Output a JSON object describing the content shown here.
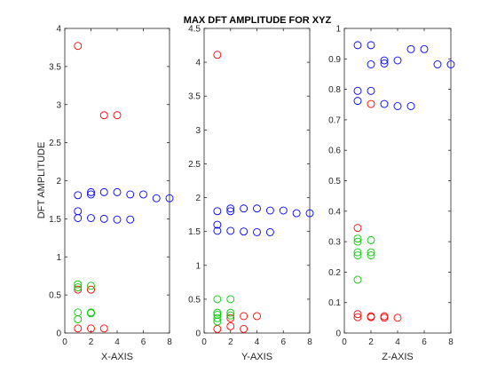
{
  "figure": {
    "title": "MAX DFT AMPLITUDE FOR XYZ",
    "ylabel": "DFT AMPLITUDE"
  },
  "colors": {
    "red": "#ff0000",
    "green": "#00cc00",
    "blue": "#0000ff",
    "axis": "#262626"
  },
  "chart_data": [
    {
      "type": "scatter",
      "xlabel": "X-AXIS",
      "xlim": [
        0,
        8
      ],
      "ylim": [
        0,
        4
      ],
      "xticks": [
        0,
        2,
        4,
        6,
        8
      ],
      "yticks": [
        0,
        0.5,
        1,
        1.5,
        2,
        2.5,
        3,
        3.5,
        4
      ],
      "series": [
        {
          "color": "red",
          "points": [
            [
              1,
              3.77
            ],
            [
              3,
              2.86
            ],
            [
              4,
              2.86
            ],
            [
              1,
              0.57
            ],
            [
              2,
              0.57
            ],
            [
              1,
              0.06
            ],
            [
              2,
              0.06
            ],
            [
              3,
              0.06
            ]
          ]
        },
        {
          "color": "green",
          "points": [
            [
              1,
              0.64
            ],
            [
              1,
              0.6
            ],
            [
              2,
              0.62
            ],
            [
              1,
              0.27
            ],
            [
              1,
              0.18
            ],
            [
              2,
              0.27
            ],
            [
              2,
              0.26
            ]
          ]
        },
        {
          "color": "blue",
          "points": [
            [
              1,
              1.81
            ],
            [
              2,
              1.82
            ],
            [
              2,
              1.85
            ],
            [
              3,
              1.85
            ],
            [
              4,
              1.85
            ],
            [
              5,
              1.82
            ],
            [
              6,
              1.82
            ],
            [
              7,
              1.77
            ],
            [
              8,
              1.77
            ],
            [
              1,
              1.6
            ],
            [
              1,
              1.51
            ],
            [
              2,
              1.51
            ],
            [
              3,
              1.5
            ],
            [
              4,
              1.49
            ],
            [
              5,
              1.49
            ]
          ]
        }
      ]
    },
    {
      "type": "scatter",
      "xlabel": "Y-AXIS",
      "xlim": [
        0,
        8
      ],
      "ylim": [
        0,
        4.5
      ],
      "xticks": [
        0,
        2,
        4,
        6,
        8
      ],
      "yticks": [
        0,
        0.5,
        1,
        1.5,
        2,
        2.5,
        3,
        3.5,
        4,
        4.5
      ],
      "series": [
        {
          "color": "red",
          "points": [
            [
              1,
              4.11
            ],
            [
              1,
              0.06
            ],
            [
              2,
              0.1
            ],
            [
              3,
              0.06
            ],
            [
              3,
              0.25
            ],
            [
              4,
              0.25
            ],
            [
              2,
              0.22
            ]
          ]
        },
        {
          "color": "green",
          "points": [
            [
              1,
              0.5
            ],
            [
              2,
              0.5
            ],
            [
              1,
              0.3
            ],
            [
              1,
              0.27
            ],
            [
              1,
              0.22
            ],
            [
              1,
              0.17
            ],
            [
              2,
              0.3
            ],
            [
              2,
              0.26
            ]
          ]
        },
        {
          "color": "blue",
          "points": [
            [
              1,
              1.8
            ],
            [
              2,
              1.8
            ],
            [
              2,
              1.84
            ],
            [
              3,
              1.84
            ],
            [
              4,
              1.84
            ],
            [
              5,
              1.81
            ],
            [
              6,
              1.81
            ],
            [
              7,
              1.77
            ],
            [
              8,
              1.77
            ],
            [
              1,
              1.6
            ],
            [
              1,
              1.51
            ],
            [
              2,
              1.51
            ],
            [
              3,
              1.5
            ],
            [
              4,
              1.49
            ],
            [
              5,
              1.49
            ]
          ]
        }
      ]
    },
    {
      "type": "scatter",
      "xlabel": "Z-AXIS",
      "xlim": [
        0,
        8
      ],
      "ylim": [
        0,
        1
      ],
      "xticks": [
        0,
        2,
        4,
        6,
        8
      ],
      "yticks": [
        0,
        0.1,
        0.2,
        0.3,
        0.4,
        0.5,
        0.6,
        0.7,
        0.8,
        0.9,
        1
      ],
      "series": [
        {
          "color": "red",
          "points": [
            [
              1,
              0.345
            ],
            [
              2,
              0.752
            ],
            [
              1,
              0.062
            ],
            [
              1,
              0.052
            ],
            [
              2,
              0.055
            ],
            [
              2,
              0.052
            ],
            [
              3,
              0.055
            ],
            [
              3,
              0.05
            ],
            [
              4,
              0.05
            ]
          ]
        },
        {
          "color": "green",
          "points": [
            [
              1,
              0.31
            ],
            [
              1,
              0.3
            ],
            [
              2,
              0.305
            ],
            [
              1,
              0.265
            ],
            [
              1,
              0.255
            ],
            [
              2,
              0.265
            ],
            [
              2,
              0.255
            ],
            [
              1,
              0.175
            ]
          ]
        },
        {
          "color": "blue",
          "points": [
            [
              1,
              0.945
            ],
            [
              2,
              0.945
            ],
            [
              2,
              0.882
            ],
            [
              3,
              0.895
            ],
            [
              3,
              0.885
            ],
            [
              4,
              0.895
            ],
            [
              5,
              0.932
            ],
            [
              6,
              0.932
            ],
            [
              7,
              0.882
            ],
            [
              8,
              0.882
            ],
            [
              1,
              0.795
            ],
            [
              2,
              0.795
            ],
            [
              1,
              0.762
            ],
            [
              3,
              0.752
            ],
            [
              4,
              0.745
            ],
            [
              5,
              0.745
            ]
          ]
        }
      ]
    }
  ]
}
